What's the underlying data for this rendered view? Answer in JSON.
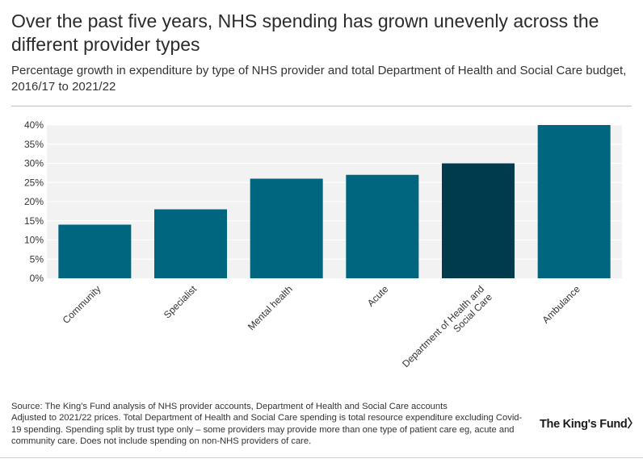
{
  "header": {
    "title": "Over the past five years, NHS spending has grown unevenly across the different provider types",
    "subtitle": "Percentage growth in expenditure by type of NHS provider and total Department of Health and Social Care budget, 2016/17 to 2021/22"
  },
  "chart_data": {
    "type": "bar",
    "title": "Over the past five years, NHS spending has grown unevenly across the different provider types",
    "subtitle": "Percentage growth in expenditure by type of NHS provider and total Department of Health and Social Care budget, 2016/17 to 2021/22",
    "categories": [
      "Community",
      "Specialist",
      "Mental health",
      "Acute",
      "Department of Health and Social Care",
      "Ambulance"
    ],
    "category_lines": [
      [
        "Community"
      ],
      [
        "Specialist"
      ],
      [
        "Mental health"
      ],
      [
        "Acute"
      ],
      [
        "Department of Health and",
        "Social Care"
      ],
      [
        "Ambulance"
      ]
    ],
    "values": [
      14,
      18,
      26,
      27,
      30,
      40
    ],
    "unit": "%",
    "ylim": [
      0,
      40
    ],
    "yticks": [
      0,
      5,
      10,
      15,
      20,
      25,
      30,
      35,
      40
    ],
    "ytick_labels": [
      "0%",
      "5%",
      "10%",
      "15%",
      "20%",
      "25%",
      "30%",
      "35%",
      "40%"
    ],
    "xlabel": "",
    "ylabel": "",
    "grid": true,
    "colors": {
      "default": "#00667f",
      "highlight": "#003a4d",
      "highlight_index": 4,
      "plot_background": "#f2f2f2",
      "grid": "#ffffff"
    }
  },
  "footer": {
    "source": "Source: The King's Fund analysis of NHS provider accounts, Department of Health and Social Care accounts",
    "note": "Adjusted to 2021/22 prices. Total Department of Health and Social Care spending is total resource expenditure excluding Covid-19 spending. Spending split by trust type only – some providers may provide more than one type of patient care eg, acute and community care. Does not include spending on non-NHS providers of care."
  },
  "branding": {
    "logo_text": "The King's Fund〉"
  }
}
